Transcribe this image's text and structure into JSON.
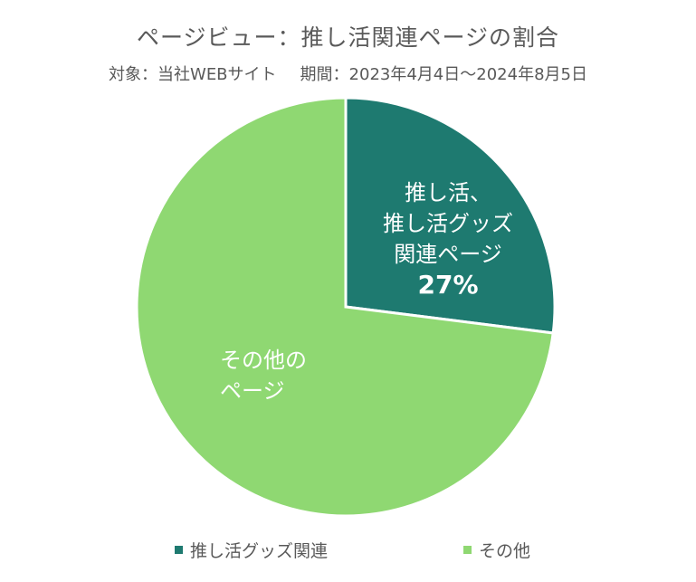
{
  "chart_data": {
    "type": "pie",
    "title": "ページビュー：推し活関連ページの割合",
    "subtitle_target": "対象：当社WEBサイト",
    "subtitle_period": "期間：2023年4月4日～2024年8月5日",
    "slices": [
      {
        "name": "推し活グッズ関連",
        "label_lines": [
          "推し活、",
          "推し活グッズ",
          "関連ページ"
        ],
        "value": 27,
        "value_label": "27%",
        "color": "#1e7a70"
      },
      {
        "name": "その他",
        "label_lines": [
          "その他の",
          "ページ"
        ],
        "value": 73,
        "color": "#8fd872"
      }
    ],
    "legend_position": "bottom"
  }
}
